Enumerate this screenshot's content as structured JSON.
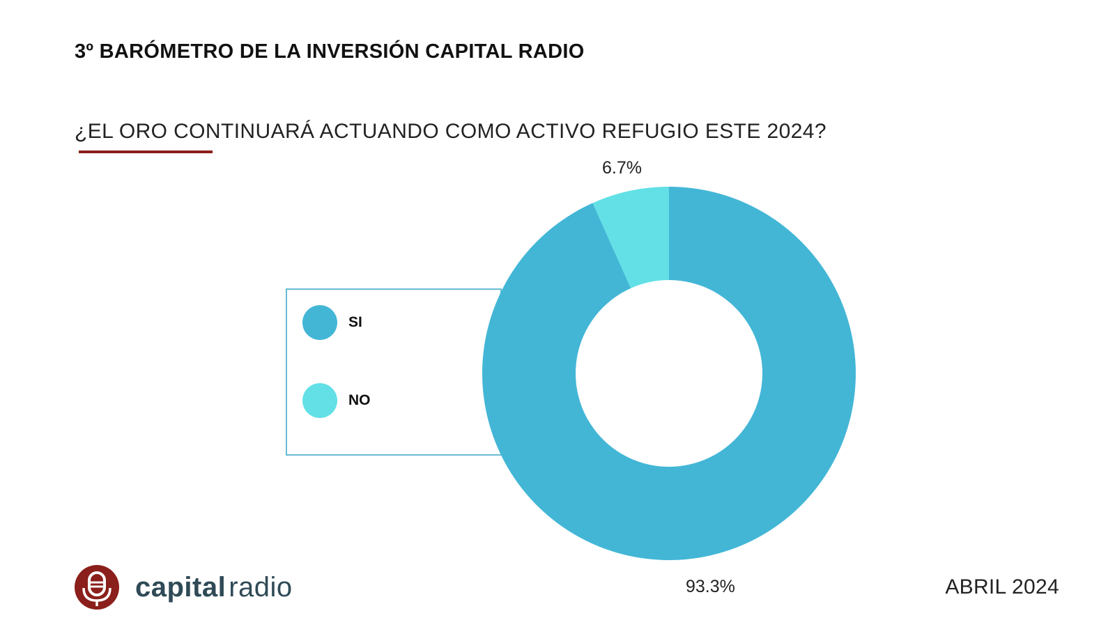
{
  "header": {
    "title": "3º BARÓMETRO DE LA INVERSIÓN CAPITAL RADIO"
  },
  "question": "¿EL ORO CONTINUARÁ ACTUANDO COMO ACTIVO REFUGIO ESTE 2024?",
  "footer": {
    "logo_text_bold": "capital",
    "logo_text_light": "radio",
    "date": "ABRIL 2024"
  },
  "colors": {
    "accent": "#8a1f1b",
    "si": "#43b6d6",
    "no": "#62e0e6",
    "legend_border": "#66bcd2"
  },
  "chart_data": {
    "type": "pie",
    "style": "donut",
    "title": "¿EL ORO CONTINUARÁ ACTUANDO COMO ACTIVO REFUGIO ESTE 2024?",
    "categories": [
      "SI",
      "NO"
    ],
    "values": [
      93.3,
      6.7
    ],
    "labels": [
      "93.3%",
      "6.7%"
    ],
    "colors": [
      "#43b6d6",
      "#62e0e6"
    ],
    "legend": {
      "placement": "left",
      "entries": [
        "SI",
        "NO"
      ]
    }
  }
}
